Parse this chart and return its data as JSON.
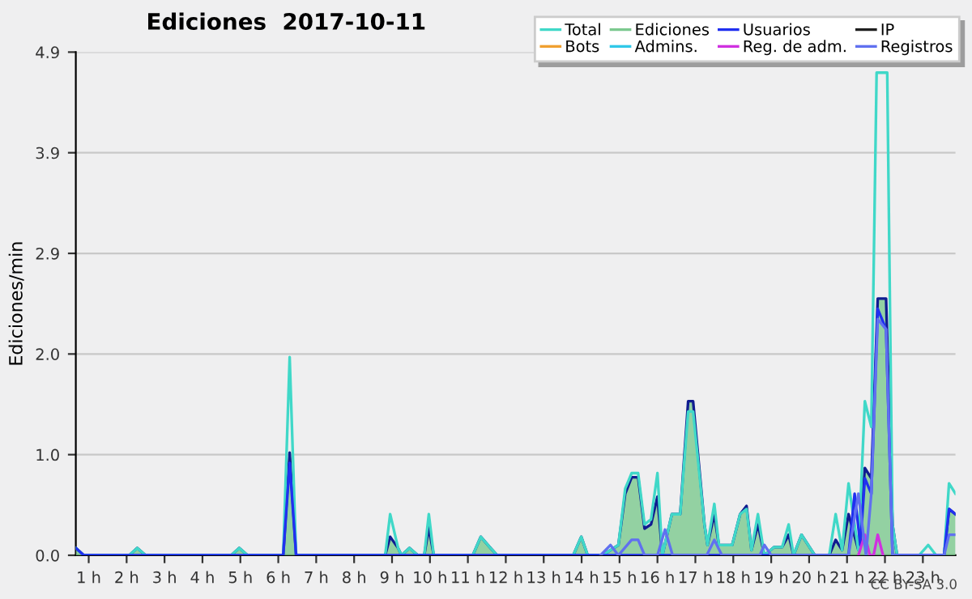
{
  "chart_data": {
    "type": "line",
    "title": "Ediciones  2017-10-11",
    "ylabel": "Ediciones/min",
    "annotations": [
      "CC BY-SA 3.0"
    ],
    "xlim": [
      0.66,
      23.86
    ],
    "ylim": [
      0,
      4.9
    ],
    "xticks": [
      {
        "value": 1,
        "label": "1 h"
      },
      {
        "value": 2,
        "label": "2 h"
      },
      {
        "value": 3,
        "label": "3 h"
      },
      {
        "value": 4,
        "label": "4 h"
      },
      {
        "value": 5,
        "label": "5 h"
      },
      {
        "value": 6,
        "label": "6 h"
      },
      {
        "value": 7,
        "label": "7 h"
      },
      {
        "value": 8,
        "label": "8 h"
      },
      {
        "value": 9,
        "label": "9 h"
      },
      {
        "value": 10,
        "label": "10 h"
      },
      {
        "value": 11,
        "label": "11 h"
      },
      {
        "value": 12,
        "label": "12 h"
      },
      {
        "value": 13,
        "label": "13 h"
      },
      {
        "value": 14,
        "label": "14 h"
      },
      {
        "value": 15,
        "label": "15 h"
      },
      {
        "value": 16,
        "label": "16 h"
      },
      {
        "value": 17,
        "label": "17 h"
      },
      {
        "value": 18,
        "label": "18 h"
      },
      {
        "value": 19,
        "label": "19 h"
      },
      {
        "value": 20,
        "label": "20 h"
      },
      {
        "value": 21,
        "label": "21 h"
      },
      {
        "value": 22,
        "label": "22 h"
      },
      {
        "value": 23,
        "label": "23 h"
      }
    ],
    "yticks": [
      {
        "value": 0,
        "label": "0.0"
      },
      {
        "value": 0.98,
        "label": "1.0"
      },
      {
        "value": 1.96,
        "label": "2.0"
      },
      {
        "value": 2.94,
        "label": "2.9"
      },
      {
        "value": 3.92,
        "label": "3.9"
      },
      {
        "value": 4.9,
        "label": "4.9"
      }
    ],
    "grid": "y",
    "legend": "top right",
    "marker": "none",
    "line_style": "solid",
    "series": [
      {
        "name": "Total",
        "color": "#40d8c8",
        "x": [
          0.66,
          0.87,
          2.07,
          2.28,
          2.5,
          4.76,
          4.97,
          5.19,
          6.13,
          6.3,
          6.47,
          8.82,
          8.95,
          9.16,
          9.25,
          9.46,
          9.68,
          9.85,
          9.97,
          10.1,
          11.13,
          11.34,
          11.6,
          11.77,
          13.78,
          13.99,
          14.16,
          14.55,
          14.76,
          14.97,
          15.15,
          15.32,
          15.49,
          15.66,
          15.83,
          16.0,
          16.13,
          16.38,
          16.6,
          16.81,
          16.94,
          17.24,
          17.32,
          17.5,
          17.62,
          17.97,
          18.18,
          18.35,
          18.48,
          18.65,
          18.82,
          19.08,
          19.29,
          19.46,
          19.59,
          19.8,
          20.15,
          20.53,
          20.7,
          20.87,
          21.04,
          21.3,
          21.47,
          21.64,
          21.78,
          22.06,
          22.2,
          22.32,
          22.9,
          23.14,
          23.35,
          23.56,
          23.69,
          23.86
        ],
        "values": [
          0.07,
          0,
          0,
          0.07,
          0,
          0,
          0.07,
          0,
          0,
          1.93,
          0,
          0,
          0.4,
          0.07,
          0,
          0.07,
          0,
          0,
          0.4,
          0,
          0,
          0.18,
          0.07,
          0,
          0,
          0.18,
          0,
          0,
          0.05,
          0.1,
          0.65,
          0.8,
          0.8,
          0.3,
          0.35,
          0.8,
          0,
          0.4,
          0.4,
          1.4,
          1.4,
          0.3,
          0.1,
          0.5,
          0.1,
          0.1,
          0.4,
          0.45,
          0.05,
          0.4,
          0,
          0.08,
          0.08,
          0.3,
          0,
          0.2,
          0,
          0,
          0.4,
          0.05,
          0.7,
          0.05,
          1.5,
          1.25,
          4.7,
          4.7,
          0.3,
          0,
          0,
          0.1,
          0,
          0,
          0.7,
          0.6
        ]
      },
      {
        "name": "Ediciones",
        "type": "area",
        "color": "#7cc98f",
        "x": [
          0.66,
          0.87,
          2.07,
          2.28,
          2.5,
          4.76,
          4.97,
          5.19,
          6.13,
          6.3,
          6.47,
          8.82,
          8.95,
          9.16,
          9.25,
          9.46,
          9.68,
          9.85,
          9.97,
          10.1,
          11.13,
          11.34,
          11.6,
          11.77,
          13.78,
          13.99,
          14.16,
          14.55,
          14.76,
          14.97,
          15.15,
          15.32,
          15.49,
          15.66,
          15.83,
          16.0,
          16.13,
          16.38,
          16.6,
          16.81,
          16.94,
          17.24,
          17.32,
          17.5,
          17.62,
          17.97,
          18.18,
          18.35,
          18.48,
          18.65,
          18.82,
          19.08,
          19.29,
          19.46,
          19.59,
          19.8,
          20.15,
          20.53,
          20.7,
          20.87,
          21.04,
          21.3,
          21.47,
          21.64,
          21.81,
          22.03,
          22.2,
          22.32,
          23.56,
          23.69,
          23.86
        ],
        "values": [
          0.07,
          0,
          0,
          0.07,
          0,
          0,
          0.07,
          0,
          0,
          1.0,
          0,
          0,
          0.18,
          0.07,
          0,
          0.07,
          0,
          0,
          0.27,
          0,
          0,
          0.18,
          0.07,
          0,
          0,
          0.18,
          0,
          0,
          0.05,
          0.1,
          0.6,
          0.76,
          0.76,
          0.26,
          0.3,
          0.57,
          0,
          0.4,
          0.4,
          1.5,
          1.5,
          0.3,
          0.1,
          0.4,
          0.1,
          0.1,
          0.4,
          0.48,
          0.05,
          0.3,
          0,
          0.08,
          0.08,
          0.2,
          0,
          0.2,
          0,
          0,
          0.15,
          0.05,
          0.4,
          0.05,
          0.85,
          0.75,
          2.5,
          2.5,
          0.3,
          0,
          0,
          0.45,
          0.4
        ]
      },
      {
        "name": "Usuarios",
        "color": "#2030f0",
        "x": [
          0.66,
          0.87,
          6.13,
          6.3,
          6.47,
          21.04,
          21.2,
          21.35,
          21.47,
          21.64,
          21.81,
          22.03,
          22.2,
          23.56,
          23.69,
          23.86
        ],
        "values": [
          0.07,
          0,
          0,
          0.9,
          0,
          0,
          0.6,
          0.1,
          0.75,
          0.6,
          2.4,
          2.2,
          0,
          0,
          0.45,
          0.4
        ]
      },
      {
        "name": "IP",
        "color": "#202020"
      },
      {
        "name": "Bots",
        "color": "#f0a030"
      },
      {
        "name": "Admins.",
        "color": "#30c8e8"
      },
      {
        "name": "Reg. de adm.",
        "color": "#d030e0",
        "x": [
          21.3,
          21.47,
          21.6,
          21.7,
          21.81,
          21.95
        ],
        "values": [
          0,
          0.2,
          0,
          0,
          0.2,
          0
        ]
      },
      {
        "name": "Registros",
        "color": "#6070f0",
        "x": [
          14.5,
          14.76,
          14.97,
          15.32,
          15.49,
          15.66,
          16.0,
          16.2,
          16.4,
          17.3,
          17.5,
          17.7,
          18.7,
          18.82,
          19.0,
          21.04,
          21.3,
          21.5,
          21.64,
          21.81,
          22.03,
          22.2,
          23.56,
          23.69,
          23.86
        ],
        "values": [
          0,
          0.1,
          0,
          0.15,
          0.15,
          0,
          0,
          0.25,
          0,
          0,
          0.15,
          0,
          0,
          0.1,
          0,
          0,
          0.6,
          0,
          0.6,
          2.3,
          2.2,
          0,
          0,
          0.2,
          0.2
        ]
      }
    ]
  }
}
